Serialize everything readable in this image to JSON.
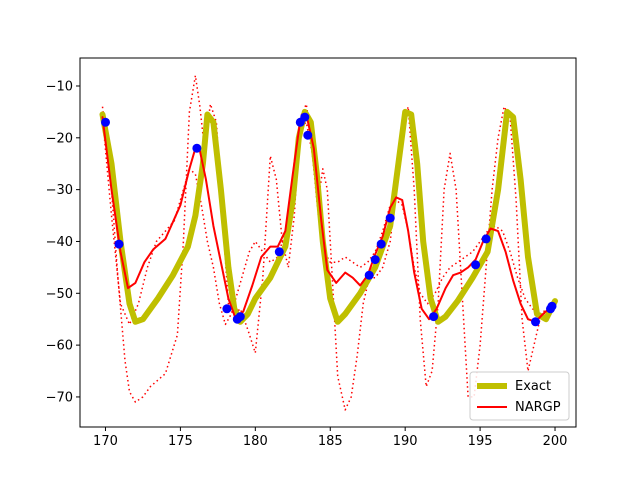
{
  "chart_data": {
    "type": "line",
    "title": "",
    "xlabel": "",
    "ylabel": "",
    "xlim": [
      168.3,
      201.4
    ],
    "ylim": [
      -75.8,
      -4.6
    ],
    "xticks": [
      170,
      175,
      180,
      185,
      190,
      195,
      200
    ],
    "yticks": [
      -10,
      -20,
      -30,
      -40,
      -50,
      -60,
      -70
    ],
    "grid": false,
    "legend_position": "lower-right",
    "legend": [
      "Exact",
      "NARGP"
    ],
    "colors": {
      "exact": "#bfbf00",
      "nargp": "#ff0000",
      "band": "#ff0000",
      "points": "#0000ff"
    },
    "series": [
      {
        "name": "Exact",
        "style": "thick-solid",
        "x": [
          169.8,
          170.4,
          171.0,
          171.6,
          172.0,
          172.5,
          173.5,
          174.5,
          175.5,
          176.0,
          176.5,
          176.8,
          177.2,
          177.7,
          178.2,
          178.6,
          179.0,
          179.5,
          180.0,
          181.0,
          182.0,
          182.5,
          182.9,
          183.3,
          183.7,
          184.1,
          184.5,
          185.0,
          185.5,
          186.0,
          187.0,
          188.0,
          189.0,
          189.5,
          190.0,
          190.4,
          190.8,
          191.2,
          191.7,
          192.2,
          192.7,
          193.5,
          194.5,
          195.5,
          196.2,
          196.8,
          197.2,
          197.7,
          198.2,
          198.8,
          199.4,
          200.0
        ],
        "y": [
          -15.5,
          -25,
          -40,
          -52,
          -55.5,
          -55,
          -51,
          -46.5,
          -41,
          -35,
          -25,
          -15.5,
          -17,
          -30,
          -45,
          -53,
          -55.5,
          -54,
          -51,
          -47,
          -41,
          -32,
          -20,
          -15,
          -17,
          -27,
          -40,
          -51,
          -55.5,
          -54,
          -50,
          -45,
          -37,
          -26,
          -15,
          -15.5,
          -25,
          -40,
          -51,
          -55.5,
          -54.5,
          -51.5,
          -47,
          -42,
          -30,
          -15,
          -16,
          -28,
          -43,
          -54,
          -55,
          -51.5
        ]
      },
      {
        "name": "NARGP",
        "style": "solid",
        "x": [
          169.8,
          170.4,
          171.0,
          171.5,
          172.0,
          172.6,
          173.2,
          174.0,
          175.0,
          175.6,
          176.0,
          176.3,
          176.7,
          177.2,
          177.7,
          178.2,
          178.7,
          179.2,
          179.8,
          180.4,
          181.0,
          181.5,
          182.0,
          182.5,
          183.0,
          183.4,
          183.9,
          184.4,
          184.8,
          185.4,
          186.0,
          186.5,
          187.0,
          187.5,
          188.0,
          188.5,
          189.0,
          189.4,
          189.8,
          190.2,
          190.6,
          191.1,
          191.6,
          192.1,
          192.7,
          193.2,
          193.7,
          194.2,
          194.7,
          195.2,
          195.7,
          196.2,
          196.7,
          197.2,
          197.7,
          198.2,
          198.7,
          199.2,
          199.6,
          200.0
        ],
        "y": [
          -16,
          -30,
          -42,
          -49,
          -48,
          -44,
          -41.5,
          -39.5,
          -33,
          -26,
          -22,
          -22.5,
          -28,
          -37,
          -44,
          -51,
          -55,
          -53.5,
          -48.5,
          -43,
          -41,
          -41,
          -38,
          -27,
          -16.5,
          -15.5,
          -22,
          -36,
          -45.5,
          -48,
          -46,
          -47,
          -48.5,
          -46.5,
          -42.5,
          -39,
          -33.5,
          -31.5,
          -32,
          -38,
          -46,
          -53,
          -55,
          -53,
          -49,
          -46.5,
          -46,
          -45,
          -43.5,
          -40,
          -37.5,
          -38,
          -42,
          -47.5,
          -52,
          -55,
          -55.5,
          -54,
          -53,
          -52.5
        ]
      },
      {
        "name": "",
        "style": "dotted",
        "x": [
          169.8,
          170.3,
          170.8,
          171.3,
          171.6,
          172.0,
          172.5,
          173.0,
          174.0,
          174.8,
          175.2,
          175.6,
          176.0,
          176.3,
          176.6,
          177.0,
          177.4,
          177.8,
          178.2,
          178.6,
          179.0,
          179.5,
          180.0,
          180.5,
          181.0,
          181.4,
          181.8,
          182.2,
          182.6,
          183.0,
          183.4,
          183.8,
          184.2,
          184.5,
          184.8,
          185.1,
          185.5,
          186.0,
          186.4,
          186.8,
          187.2,
          187.6,
          188.0,
          188.5,
          189.0,
          189.4,
          189.8,
          190.2,
          190.6,
          191.0,
          191.4,
          191.8,
          192.2,
          192.6,
          193.0,
          193.4,
          193.8,
          194.2,
          194.6,
          195.0,
          195.4,
          195.8,
          196.2,
          196.6,
          197.0,
          197.4,
          197.8,
          198.2,
          198.6,
          199.0,
          199.4,
          199.7,
          200.0
        ],
        "y": [
          -14,
          -26,
          -46,
          -63,
          -69,
          -71,
          -70,
          -68,
          -65.5,
          -58,
          -40,
          -15,
          -8,
          -14,
          -22,
          -13.5,
          -17,
          -35,
          -52,
          -54,
          -53,
          -57,
          -61.5,
          -47,
          -23.5,
          -28,
          -40,
          -45,
          -35,
          -16,
          -13.5,
          -22,
          -32,
          -26,
          -30,
          -45,
          -66,
          -72.5,
          -70,
          -62,
          -52,
          -47,
          -47,
          -45,
          -40,
          -30,
          -18,
          -14,
          -30,
          -55,
          -68,
          -65,
          -52,
          -30,
          -23,
          -30,
          -50,
          -70,
          -70,
          -60,
          -45,
          -30,
          -20,
          -14,
          -16,
          -32,
          -55,
          -65,
          -60,
          -55,
          -53.5,
          -52.5,
          -51.5
        ]
      },
      {
        "name": "",
        "style": "dotted",
        "x": [
          169.8,
          170.4,
          171.0,
          171.6,
          172.2,
          172.8,
          173.4,
          174.0,
          174.6,
          175.2,
          175.6,
          176.0,
          176.4,
          176.8,
          177.2,
          177.6,
          178.0,
          178.4,
          178.8,
          179.2,
          179.6,
          180.0,
          180.5,
          181.0,
          181.5,
          182.0,
          182.5,
          183.0,
          183.4,
          183.8,
          184.2,
          184.6,
          185.0,
          185.5,
          186.0,
          186.5,
          187.0,
          187.5,
          188.0,
          188.5,
          189.0,
          189.4,
          189.8,
          190.2,
          190.6,
          191.0,
          191.5,
          192.0,
          192.5,
          193.0,
          193.5,
          194.0,
          194.5,
          195.0,
          195.5,
          196.0,
          196.5,
          197.0,
          197.5,
          198.0,
          198.5,
          199.0,
          199.5,
          200.0
        ],
        "y": [
          -16,
          -35,
          -52,
          -56,
          -52,
          -45,
          -40,
          -38,
          -36,
          -30,
          -26,
          -27,
          -33,
          -40,
          -45,
          -52,
          -56,
          -54,
          -50,
          -46,
          -42,
          -40,
          -42,
          -44,
          -43,
          -38,
          -28,
          -18,
          -17,
          -23,
          -35,
          -42,
          -44,
          -44,
          -43,
          -44,
          -45,
          -44,
          -42,
          -38,
          -33,
          -32,
          -33,
          -38,
          -45,
          -50,
          -52,
          -50,
          -47,
          -45,
          -44,
          -43,
          -42,
          -40,
          -38,
          -37,
          -38,
          -42,
          -47,
          -51,
          -53,
          -54,
          -53,
          -52.5
        ]
      }
    ],
    "points": {
      "x": [
        170.0,
        170.9,
        176.1,
        178.1,
        178.8,
        179.0,
        181.6,
        183.0,
        183.3,
        183.5,
        187.6,
        188.0,
        188.4,
        189.0,
        191.9,
        194.7,
        195.4,
        198.7,
        199.7,
        199.8
      ],
      "y": [
        -17,
        -40.5,
        -22,
        -53,
        -55,
        -54.5,
        -42,
        -17,
        -16,
        -19.5,
        -46.5,
        -43.5,
        -40.5,
        -35.5,
        -54.5,
        -44.5,
        -39.5,
        -55.5,
        -53,
        -52.5
      ]
    }
  }
}
